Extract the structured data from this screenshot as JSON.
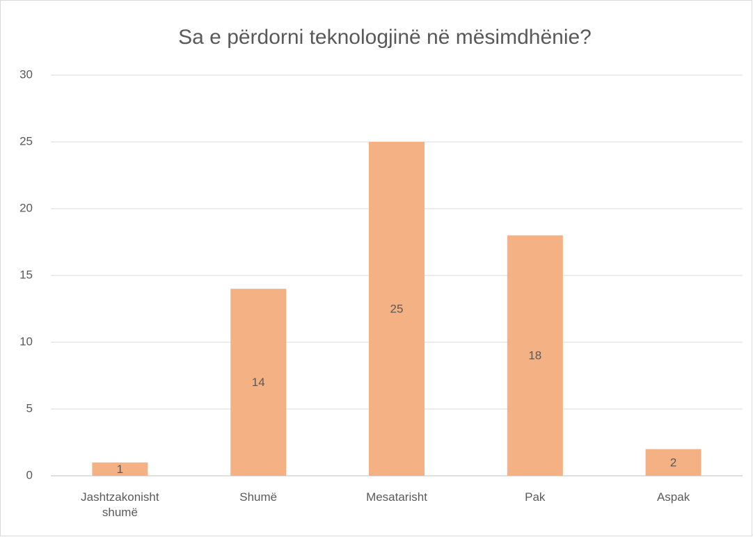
{
  "chart_data": {
    "type": "bar",
    "title": "Sa e përdorni teknologjinë në mësimdhënie?",
    "categories": [
      "Jashtzakonisht shumë",
      "Shumë",
      "Mesatarisht",
      "Pak",
      "Aspak"
    ],
    "values": [
      1,
      14,
      25,
      18,
      2
    ],
    "color": "#f4b183",
    "ylim": [
      0,
      30
    ],
    "yticks": [
      0,
      5,
      10,
      15,
      20,
      25,
      30
    ],
    "grid": true
  }
}
